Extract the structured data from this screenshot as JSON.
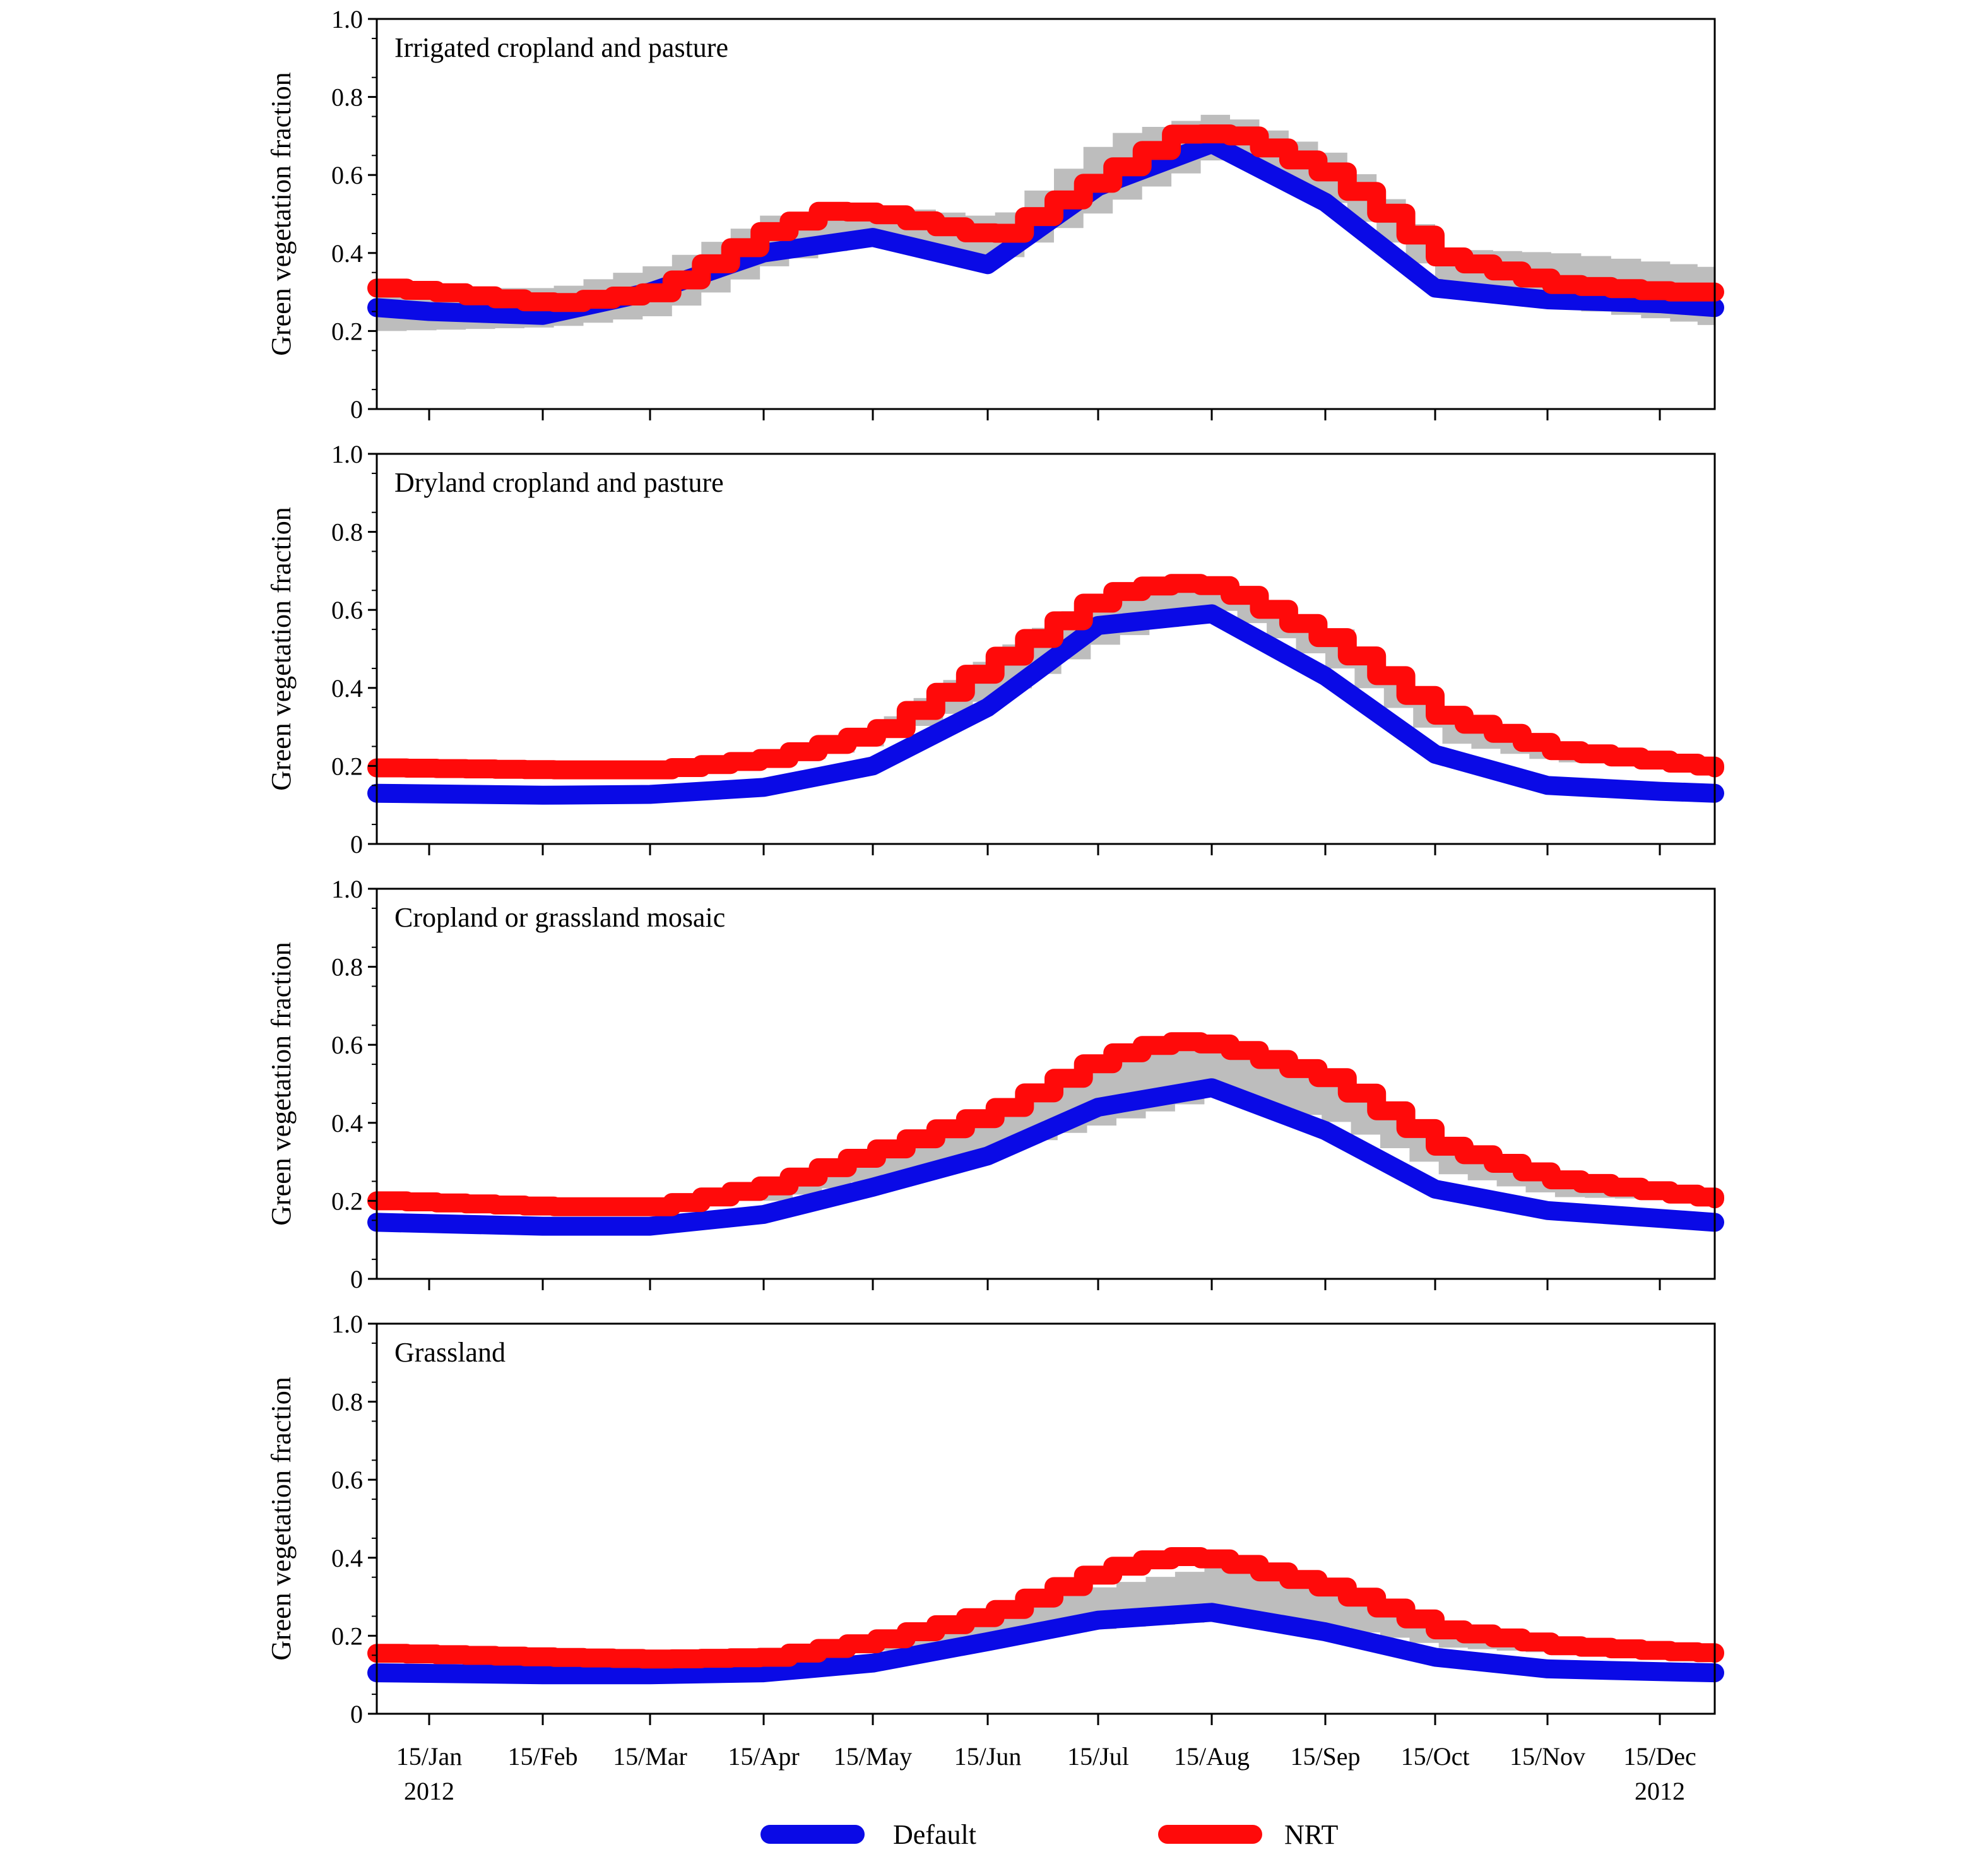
{
  "chart_data": {
    "type": "line",
    "x_ticks": [
      "15/Jan",
      "15/Feb",
      "15/Mar",
      "15/Apr",
      "15/May",
      "15/Jun",
      "15/Jul",
      "15/Aug",
      "15/Sep",
      "15/Oct",
      "15/Nov",
      "15/Dec"
    ],
    "year_labels": [
      "2012",
      "2012"
    ],
    "xlim": [
      "2012-01-01",
      "2012-12-31"
    ],
    "ylabel": "Green vegetation fraction",
    "ylim": [
      0,
      1.0
    ],
    "y_ticks": [
      "0",
      "0.2",
      "0.4",
      "0.6",
      "0.8",
      "1.0"
    ],
    "legend": [
      {
        "name": "Default",
        "color": "#0a0ae6"
      },
      {
        "name": "NRT",
        "color": "#ff0a0a"
      }
    ],
    "band_color": "#bdbdbd",
    "legend_placement": "bottom",
    "panels": [
      {
        "title": "Irrigated cropland and pasture",
        "default": [
          {
            "x": "2012-01-01",
            "y": 0.26
          },
          {
            "x": "2012-01-15",
            "y": 0.25
          },
          {
            "x": "2012-02-15",
            "y": 0.24
          },
          {
            "x": "2012-03-15",
            "y": 0.3
          },
          {
            "x": "2012-04-15",
            "y": 0.4
          },
          {
            "x": "2012-05-15",
            "y": 0.44
          },
          {
            "x": "2012-06-15",
            "y": 0.37
          },
          {
            "x": "2012-07-15",
            "y": 0.57
          },
          {
            "x": "2012-08-15",
            "y": 0.68
          },
          {
            "x": "2012-09-15",
            "y": 0.53
          },
          {
            "x": "2012-10-15",
            "y": 0.31
          },
          {
            "x": "2012-11-15",
            "y": 0.28
          },
          {
            "x": "2012-12-15",
            "y": 0.27
          },
          {
            "x": "2012-12-31",
            "y": 0.26
          }
        ],
        "nrt": [
          {
            "x": "2012-01-01",
            "y": 0.31
          },
          {
            "x": "2012-01-15",
            "y": 0.3
          },
          {
            "x": "2012-02-15",
            "y": 0.27
          },
          {
            "x": "2012-03-15",
            "y": 0.3
          },
          {
            "x": "2012-04-15",
            "y": 0.46
          },
          {
            "x": "2012-05-01",
            "y": 0.51
          },
          {
            "x": "2012-05-15",
            "y": 0.5
          },
          {
            "x": "2012-06-15",
            "y": 0.44
          },
          {
            "x": "2012-07-15",
            "y": 0.6
          },
          {
            "x": "2012-08-05",
            "y": 0.71
          },
          {
            "x": "2012-08-20",
            "y": 0.7
          },
          {
            "x": "2012-09-15",
            "y": 0.6
          },
          {
            "x": "2012-10-15",
            "y": 0.39
          },
          {
            "x": "2012-11-15",
            "y": 0.32
          },
          {
            "x": "2012-12-15",
            "y": 0.3
          },
          {
            "x": "2012-12-31",
            "y": 0.3
          }
        ],
        "band_min": [
          {
            "x": "2012-01-01",
            "y": 0.2
          },
          {
            "x": "2012-02-15",
            "y": 0.21
          },
          {
            "x": "2012-03-15",
            "y": 0.24
          },
          {
            "x": "2012-04-15",
            "y": 0.37
          },
          {
            "x": "2012-05-15",
            "y": 0.44
          },
          {
            "x": "2012-06-15",
            "y": 0.38
          },
          {
            "x": "2012-07-15",
            "y": 0.52
          },
          {
            "x": "2012-08-15",
            "y": 0.65
          },
          {
            "x": "2012-09-15",
            "y": 0.52
          },
          {
            "x": "2012-10-15",
            "y": 0.32
          },
          {
            "x": "2012-11-15",
            "y": 0.26
          },
          {
            "x": "2012-12-31",
            "y": 0.21
          }
        ],
        "band_max": [
          {
            "x": "2012-01-01",
            "y": 0.31
          },
          {
            "x": "2012-02-15",
            "y": 0.31
          },
          {
            "x": "2012-03-15",
            "y": 0.37
          },
          {
            "x": "2012-04-15",
            "y": 0.5
          },
          {
            "x": "2012-05-15",
            "y": 0.52
          },
          {
            "x": "2012-06-15",
            "y": 0.49
          },
          {
            "x": "2012-07-15",
            "y": 0.7
          },
          {
            "x": "2012-08-15",
            "y": 0.76
          },
          {
            "x": "2012-09-15",
            "y": 0.65
          },
          {
            "x": "2012-10-15",
            "y": 0.41
          },
          {
            "x": "2012-11-15",
            "y": 0.4
          },
          {
            "x": "2012-12-31",
            "y": 0.36
          }
        ]
      },
      {
        "title": "Dryland cropland and pasture",
        "default": [
          {
            "x": "2012-01-01",
            "y": 0.13
          },
          {
            "x": "2012-02-15",
            "y": 0.125
          },
          {
            "x": "2012-03-15",
            "y": 0.127
          },
          {
            "x": "2012-04-15",
            "y": 0.145
          },
          {
            "x": "2012-05-15",
            "y": 0.2
          },
          {
            "x": "2012-06-15",
            "y": 0.35
          },
          {
            "x": "2012-07-15",
            "y": 0.56
          },
          {
            "x": "2012-08-15",
            "y": 0.59
          },
          {
            "x": "2012-09-15",
            "y": 0.43
          },
          {
            "x": "2012-10-15",
            "y": 0.23
          },
          {
            "x": "2012-11-15",
            "y": 0.15
          },
          {
            "x": "2012-12-15",
            "y": 0.135
          },
          {
            "x": "2012-12-31",
            "y": 0.13
          }
        ],
        "nrt": [
          {
            "x": "2012-01-01",
            "y": 0.195
          },
          {
            "x": "2012-02-15",
            "y": 0.19
          },
          {
            "x": "2012-03-15",
            "y": 0.19
          },
          {
            "x": "2012-04-15",
            "y": 0.22
          },
          {
            "x": "2012-05-15",
            "y": 0.29
          },
          {
            "x": "2012-06-15",
            "y": 0.47
          },
          {
            "x": "2012-07-15",
            "y": 0.64
          },
          {
            "x": "2012-08-01",
            "y": 0.67
          },
          {
            "x": "2012-08-15",
            "y": 0.66
          },
          {
            "x": "2012-09-15",
            "y": 0.52
          },
          {
            "x": "2012-10-15",
            "y": 0.33
          },
          {
            "x": "2012-11-15",
            "y": 0.24
          },
          {
            "x": "2012-12-15",
            "y": 0.21
          },
          {
            "x": "2012-12-31",
            "y": 0.195
          }
        ],
        "band_min": [
          {
            "x": "2012-03-15",
            "y": 0.19
          },
          {
            "x": "2012-04-15",
            "y": 0.2
          },
          {
            "x": "2012-05-15",
            "y": 0.26
          },
          {
            "x": "2012-06-15",
            "y": 0.38
          },
          {
            "x": "2012-07-15",
            "y": 0.52
          },
          {
            "x": "2012-08-15",
            "y": 0.6
          },
          {
            "x": "2012-09-15",
            "y": 0.45
          },
          {
            "x": "2012-10-15",
            "y": 0.26
          },
          {
            "x": "2012-11-15",
            "y": 0.21
          },
          {
            "x": "2012-12-31",
            "y": 0.195
          }
        ],
        "band_max": [
          {
            "x": "2012-03-15",
            "y": 0.195
          },
          {
            "x": "2012-04-15",
            "y": 0.23
          },
          {
            "x": "2012-05-15",
            "y": 0.31
          },
          {
            "x": "2012-06-15",
            "y": 0.49
          },
          {
            "x": "2012-07-15",
            "y": 0.65
          },
          {
            "x": "2012-08-15",
            "y": 0.67
          },
          {
            "x": "2012-09-15",
            "y": 0.55
          },
          {
            "x": "2012-10-15",
            "y": 0.35
          },
          {
            "x": "2012-11-15",
            "y": 0.25
          },
          {
            "x": "2012-12-31",
            "y": 0.2
          }
        ]
      },
      {
        "title": "Cropland or grassland mosaic",
        "default": [
          {
            "x": "2012-01-01",
            "y": 0.145
          },
          {
            "x": "2012-02-15",
            "y": 0.135
          },
          {
            "x": "2012-03-15",
            "y": 0.135
          },
          {
            "x": "2012-04-15",
            "y": 0.165
          },
          {
            "x": "2012-05-15",
            "y": 0.235
          },
          {
            "x": "2012-06-15",
            "y": 0.315
          },
          {
            "x": "2012-07-15",
            "y": 0.44
          },
          {
            "x": "2012-08-15",
            "y": 0.49
          },
          {
            "x": "2012-09-15",
            "y": 0.38
          },
          {
            "x": "2012-10-15",
            "y": 0.23
          },
          {
            "x": "2012-11-15",
            "y": 0.175
          },
          {
            "x": "2012-12-15",
            "y": 0.155
          },
          {
            "x": "2012-12-31",
            "y": 0.145
          }
        ],
        "nrt": [
          {
            "x": "2012-01-01",
            "y": 0.2
          },
          {
            "x": "2012-02-15",
            "y": 0.185
          },
          {
            "x": "2012-03-15",
            "y": 0.185
          },
          {
            "x": "2012-04-15",
            "y": 0.24
          },
          {
            "x": "2012-05-15",
            "y": 0.33
          },
          {
            "x": "2012-06-15",
            "y": 0.43
          },
          {
            "x": "2012-07-15",
            "y": 0.57
          },
          {
            "x": "2012-08-01",
            "y": 0.61
          },
          {
            "x": "2012-08-15",
            "y": 0.6
          },
          {
            "x": "2012-09-15",
            "y": 0.51
          },
          {
            "x": "2012-10-15",
            "y": 0.34
          },
          {
            "x": "2012-11-15",
            "y": 0.255
          },
          {
            "x": "2012-12-15",
            "y": 0.22
          },
          {
            "x": "2012-12-31",
            "y": 0.205
          }
        ],
        "band_min": [
          {
            "x": "2012-04-15",
            "y": 0.2
          },
          {
            "x": "2012-05-15",
            "y": 0.26
          },
          {
            "x": "2012-06-15",
            "y": 0.33
          },
          {
            "x": "2012-07-15",
            "y": 0.4
          },
          {
            "x": "2012-08-15",
            "y": 0.47
          },
          {
            "x": "2012-09-15",
            "y": 0.4
          },
          {
            "x": "2012-10-15",
            "y": 0.27
          },
          {
            "x": "2012-11-15",
            "y": 0.21
          },
          {
            "x": "2012-12-31",
            "y": 0.2
          }
        ],
        "band_max": [
          {
            "x": "2012-04-15",
            "y": 0.25
          },
          {
            "x": "2012-05-15",
            "y": 0.35
          },
          {
            "x": "2012-06-15",
            "y": 0.45
          },
          {
            "x": "2012-07-15",
            "y": 0.58
          },
          {
            "x": "2012-08-15",
            "y": 0.61
          },
          {
            "x": "2012-09-15",
            "y": 0.53
          },
          {
            "x": "2012-10-15",
            "y": 0.36
          },
          {
            "x": "2012-11-15",
            "y": 0.27
          },
          {
            "x": "2012-12-31",
            "y": 0.21
          }
        ]
      },
      {
        "title": "Grassland",
        "default": [
          {
            "x": "2012-01-01",
            "y": 0.105
          },
          {
            "x": "2012-02-15",
            "y": 0.1
          },
          {
            "x": "2012-03-15",
            "y": 0.1
          },
          {
            "x": "2012-04-15",
            "y": 0.105
          },
          {
            "x": "2012-05-15",
            "y": 0.13
          },
          {
            "x": "2012-06-15",
            "y": 0.185
          },
          {
            "x": "2012-07-15",
            "y": 0.24
          },
          {
            "x": "2012-08-15",
            "y": 0.26
          },
          {
            "x": "2012-09-15",
            "y": 0.21
          },
          {
            "x": "2012-10-15",
            "y": 0.145
          },
          {
            "x": "2012-11-15",
            "y": 0.115
          },
          {
            "x": "2012-12-15",
            "y": 0.108
          },
          {
            "x": "2012-12-31",
            "y": 0.105
          }
        ],
        "nrt": [
          {
            "x": "2012-01-01",
            "y": 0.155
          },
          {
            "x": "2012-02-15",
            "y": 0.145
          },
          {
            "x": "2012-03-15",
            "y": 0.14
          },
          {
            "x": "2012-04-15",
            "y": 0.145
          },
          {
            "x": "2012-05-15",
            "y": 0.19
          },
          {
            "x": "2012-06-15",
            "y": 0.26
          },
          {
            "x": "2012-07-15",
            "y": 0.37
          },
          {
            "x": "2012-08-01",
            "y": 0.405
          },
          {
            "x": "2012-08-15",
            "y": 0.395
          },
          {
            "x": "2012-09-15",
            "y": 0.32
          },
          {
            "x": "2012-10-15",
            "y": 0.215
          },
          {
            "x": "2012-11-15",
            "y": 0.175
          },
          {
            "x": "2012-12-15",
            "y": 0.16
          },
          {
            "x": "2012-12-31",
            "y": 0.155
          }
        ],
        "band_min": [
          {
            "x": "2012-05-01",
            "y": 0.15
          },
          {
            "x": "2012-05-15",
            "y": 0.16
          },
          {
            "x": "2012-06-15",
            "y": 0.19
          },
          {
            "x": "2012-07-15",
            "y": 0.22
          },
          {
            "x": "2012-08-15",
            "y": 0.24
          },
          {
            "x": "2012-09-15",
            "y": 0.22
          },
          {
            "x": "2012-10-15",
            "y": 0.17
          },
          {
            "x": "2012-11-15",
            "y": 0.155
          },
          {
            "x": "2012-12-31",
            "y": 0.15
          }
        ],
        "band_max": [
          {
            "x": "2012-05-01",
            "y": 0.17
          },
          {
            "x": "2012-05-15",
            "y": 0.21
          },
          {
            "x": "2012-06-15",
            "y": 0.27
          },
          {
            "x": "2012-07-15",
            "y": 0.33
          },
          {
            "x": "2012-08-15",
            "y": 0.38
          },
          {
            "x": "2012-09-15",
            "y": 0.32
          },
          {
            "x": "2012-10-15",
            "y": 0.22
          },
          {
            "x": "2012-11-15",
            "y": 0.18
          },
          {
            "x": "2012-12-31",
            "y": 0.16
          }
        ]
      }
    ]
  }
}
